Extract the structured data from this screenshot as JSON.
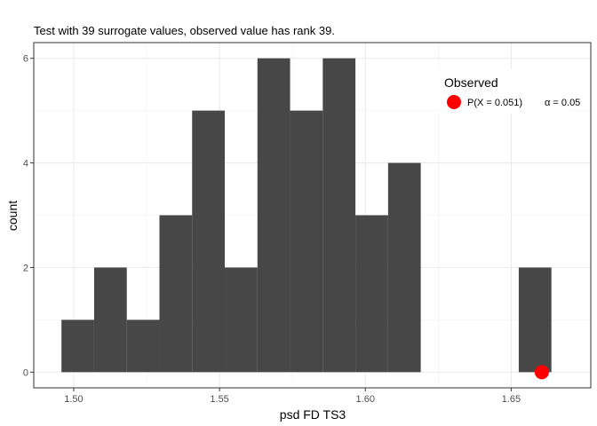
{
  "chart_data": {
    "type": "histogram",
    "title": "Test with 39 surrogate values, observed value has rank 39.",
    "xlabel": "psd FD TS3",
    "ylabel": "count",
    "xlim": [
      1.4863,
      1.6773
    ],
    "ylim": [
      -0.3,
      6.3
    ],
    "x_ticks": [
      1.5,
      1.55,
      1.6,
      1.65
    ],
    "x_tick_labels": [
      "1.50",
      "1.55",
      "1.60",
      "1.65"
    ],
    "y_ticks": [
      0,
      2,
      4,
      6
    ],
    "y_tick_labels": [
      "0",
      "2",
      "4",
      "6"
    ],
    "bin_width": 0.0112,
    "bin_starts": [
      1.4958,
      1.507,
      1.5182,
      1.5294,
      1.5406,
      1.5518,
      1.563,
      1.5742,
      1.5854,
      1.5966,
      1.6078,
      1.619,
      1.6302,
      1.6414,
      1.6526,
      1.6638
    ],
    "values": [
      1,
      2,
      1,
      3,
      5,
      2,
      6,
      5,
      6,
      3,
      4,
      0,
      0,
      0,
      2,
      0
    ],
    "bar_color": "#474747",
    "grid": true,
    "panel_border": true,
    "observed": {
      "x": 1.6605,
      "y": 0,
      "color": "#ff0000"
    },
    "legend": {
      "title": "Observed",
      "label": "P(X = 0.051)",
      "alpha_label": "α = 0.05",
      "placement": "top-right",
      "marker_color": "#ff0000"
    }
  }
}
